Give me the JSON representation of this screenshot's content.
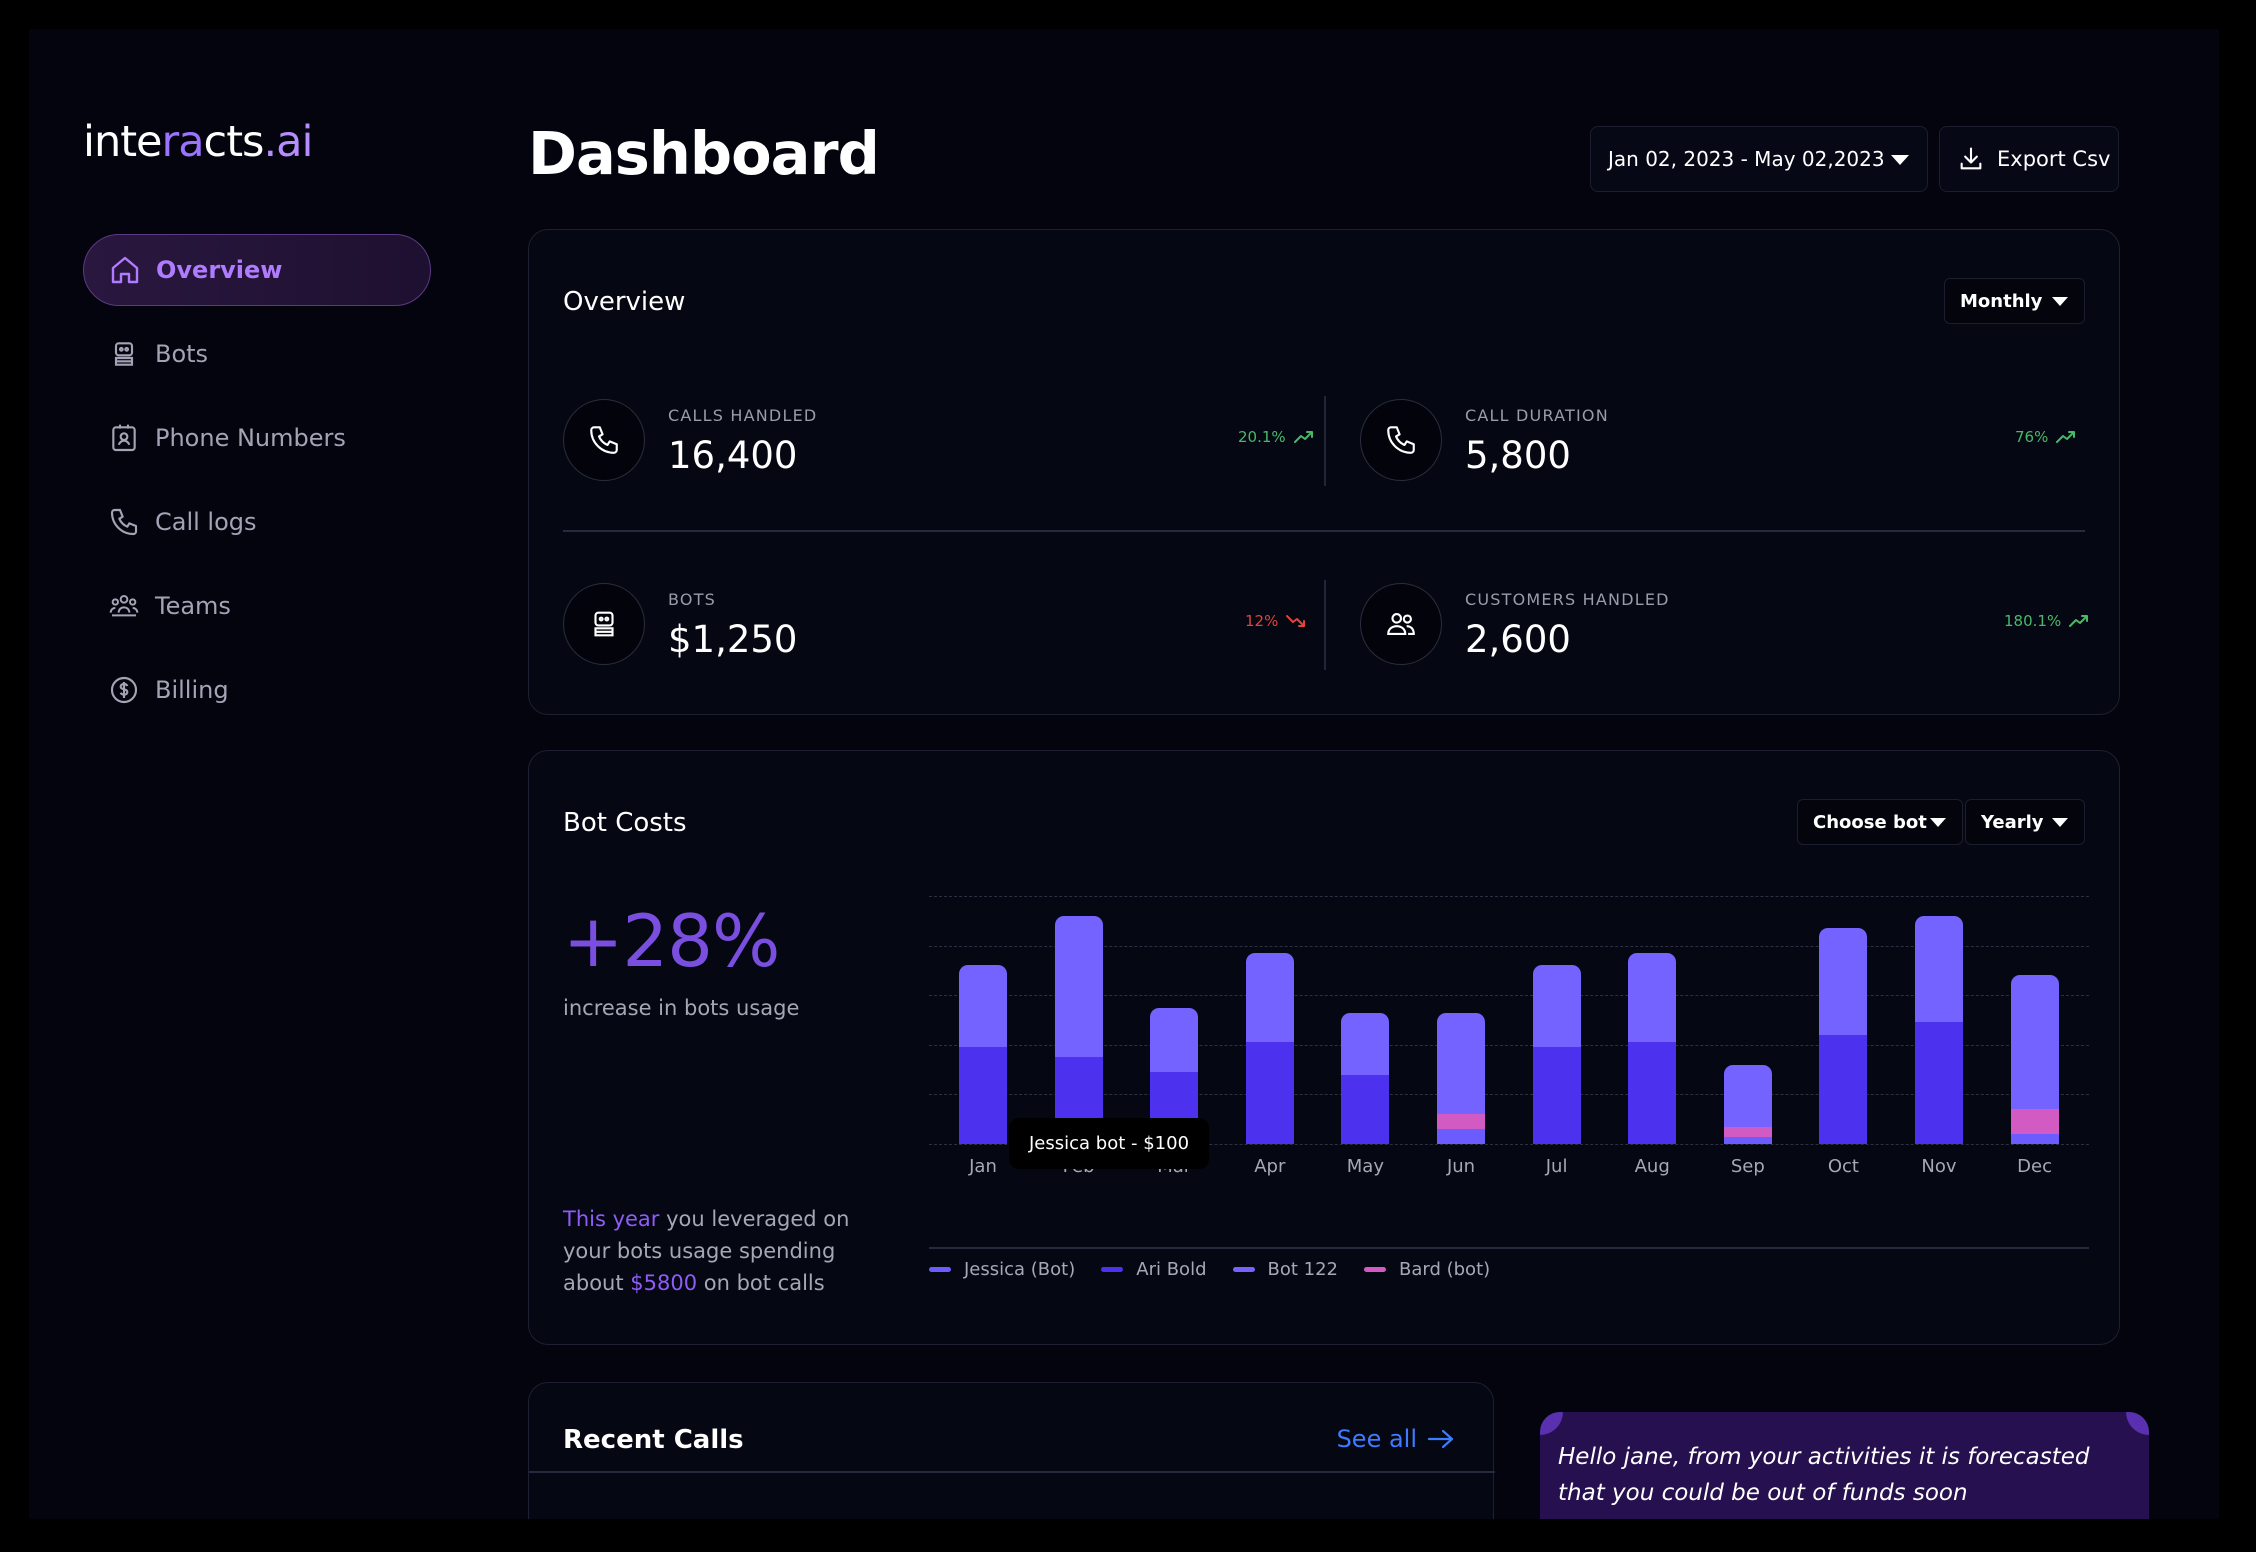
{
  "brand": {
    "part1": "inte",
    "part2": "ra",
    "part3": "cts",
    "part4": ".ai"
  },
  "sidebar": {
    "items": [
      {
        "label": "Overview",
        "icon": "home-icon",
        "active": true
      },
      {
        "label": "Bots",
        "icon": "bot-icon"
      },
      {
        "label": "Phone Numbers",
        "icon": "phone-book-icon"
      },
      {
        "label": "Call logs",
        "icon": "phone-icon"
      },
      {
        "label": "Teams",
        "icon": "team-icon"
      },
      {
        "label": "Billing",
        "icon": "dollar-icon"
      }
    ]
  },
  "header": {
    "title": "Dashboard",
    "date_range": "Jan 02, 2023 - May 02,2023",
    "export_label": "Export Csv"
  },
  "overview": {
    "title": "Overview",
    "period": "Monthly",
    "stats": [
      {
        "label": "CALLS HANDLED",
        "value": "16,400",
        "change": "20.1%",
        "trend": "up",
        "icon": "phone-icon"
      },
      {
        "label": "CALL DURATION",
        "value": "5,800",
        "change": "76%",
        "trend": "up",
        "icon": "phone-icon"
      },
      {
        "label": "BOTS",
        "value": "$1,250",
        "change": "12%",
        "trend": "down",
        "icon": "bot-icon"
      },
      {
        "label": "CUSTOMERS HANDLED",
        "value": "2,600",
        "change": "180.1%",
        "trend": "up",
        "icon": "users-icon"
      }
    ]
  },
  "bot_costs": {
    "title": "Bot Costs",
    "bot_filter": "Choose bot",
    "period": "Yearly",
    "headline": "+28%",
    "subtitle": "increase in bots usage",
    "summary_part1": "This year",
    "summary_part2": " you leveraged on your bots usage spending about ",
    "summary_part3": "$5800",
    "summary_part4": " on bot calls",
    "tooltip": "Jessica bot - $100"
  },
  "chart_data": {
    "type": "bar",
    "stacked": true,
    "categories": [
      "Jan",
      "Feb",
      "Mar",
      "Apr",
      "May",
      "Jun",
      "Jul",
      "Aug",
      "Sep",
      "Oct",
      "Nov",
      "Dec"
    ],
    "series": [
      {
        "name": "Jessica (Bot)",
        "color": "#6b5cff",
        "values": [
          0,
          0,
          0,
          0,
          0,
          0.06,
          0,
          0,
          0.03,
          0,
          0,
          0.04
        ]
      },
      {
        "name": "Ari Bold",
        "color": "#4c32ef",
        "values": [
          0.39,
          0.35,
          0.29,
          0.41,
          0.28,
          0,
          0.39,
          0.41,
          0,
          0.44,
          0.49,
          0
        ]
      },
      {
        "name": "Bot 122",
        "color": "#7463ff",
        "values": [
          0.33,
          0.57,
          0.26,
          0.36,
          0.25,
          0.41,
          0.33,
          0.36,
          0.25,
          0.43,
          0.43,
          0.54
        ]
      },
      {
        "name": "Bard (bot)",
        "color": "#d25bc3",
        "values": [
          0,
          0,
          0,
          0,
          0,
          0.06,
          0,
          0,
          0.04,
          0,
          0,
          0.1
        ]
      }
    ],
    "ylim": [
      0,
      1
    ],
    "grid": true,
    "legend": "bottom"
  },
  "recent_calls": {
    "title": "Recent Calls",
    "see_all": "See all"
  },
  "forecast": {
    "text": "Hello jane, from your activities it is forecasted that you could be out of funds soon"
  }
}
